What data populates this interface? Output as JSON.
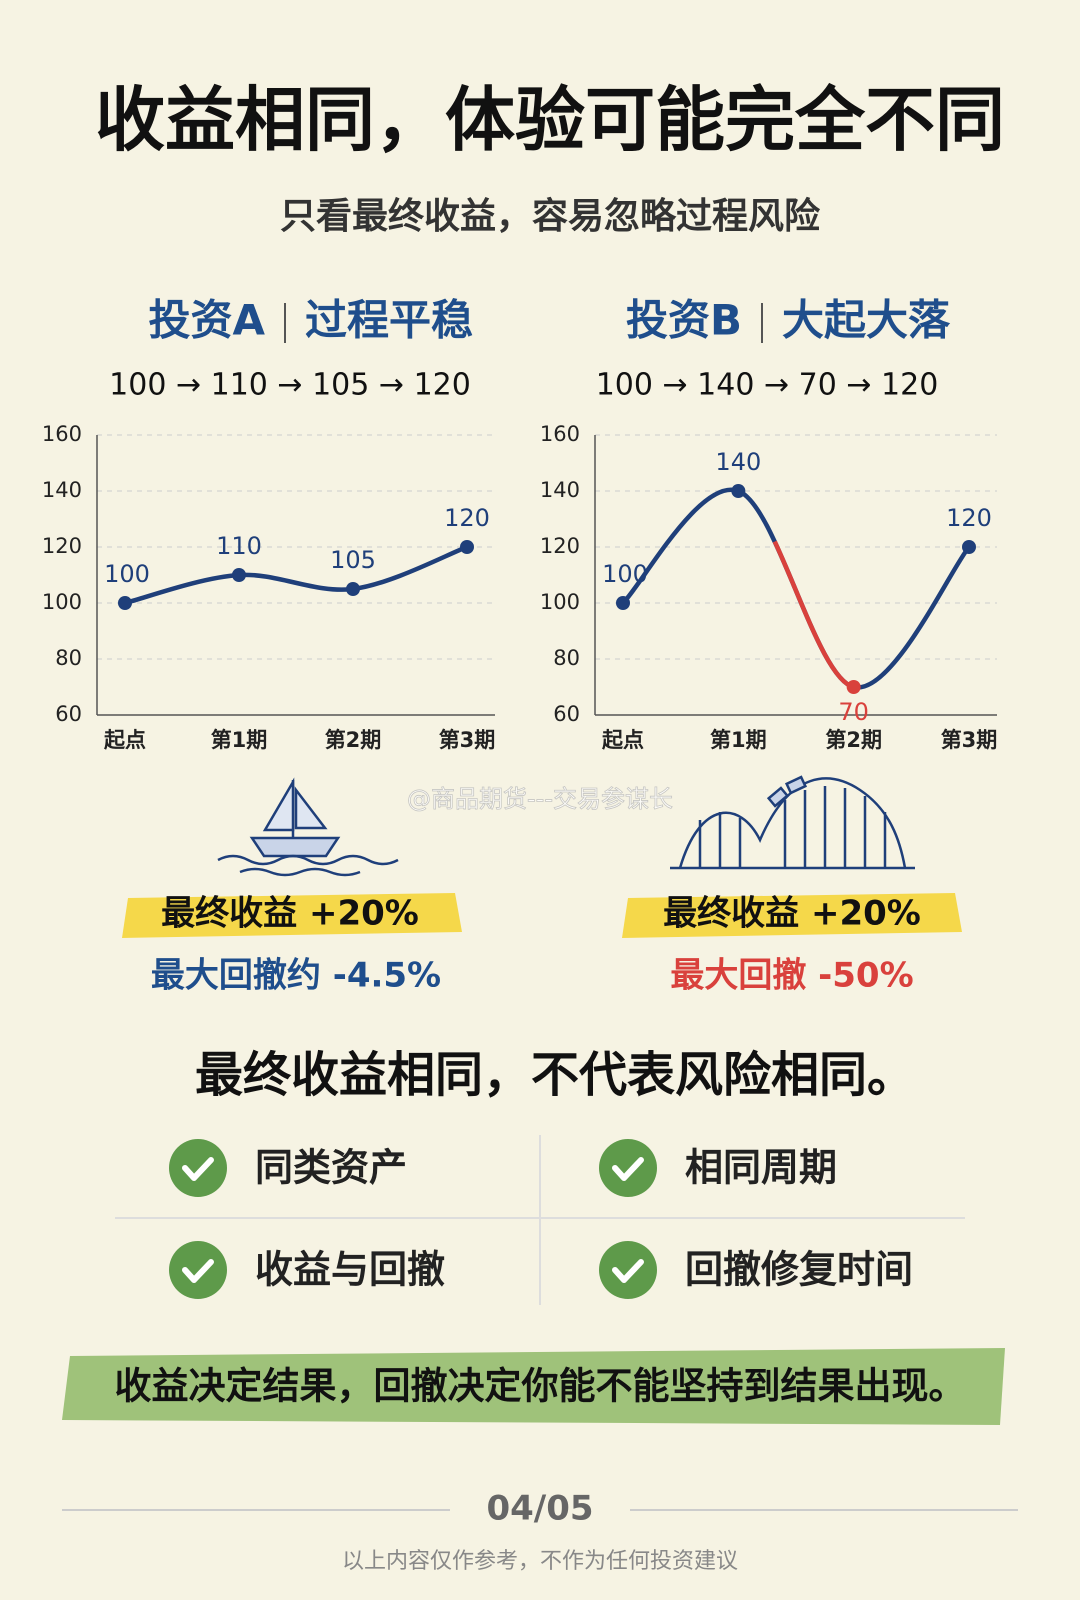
{
  "title": "收益相同，体验可能完全不同",
  "subtitle": "只看最终收益，容易忽略过程风险",
  "chart_data": [
    {
      "type": "line",
      "title": "投资A",
      "tagline": "过程平稳",
      "path_text": "100 → 110 → 105 → 120",
      "categories": [
        "起点",
        "第1期",
        "第2期",
        "第3期"
      ],
      "series": [
        {
          "color": "#1f3f7a",
          "values": [
            100,
            110,
            105,
            120
          ]
        }
      ],
      "ylim": [
        60,
        160
      ],
      "yticks": [
        60,
        80,
        100,
        120,
        140,
        160
      ],
      "grid": true
    },
    {
      "type": "line",
      "title": "投资B",
      "tagline": "大起大落",
      "path_text": "100 → 140 → 70 → 120",
      "categories": [
        "起点",
        "第1期",
        "第2期",
        "第3期"
      ],
      "series": [
        {
          "color": "#1f3f7a",
          "values": [
            100,
            140,
            70,
            120
          ]
        }
      ],
      "drawdown_color": "#d9413c",
      "ylim": [
        60,
        160
      ],
      "yticks": [
        60,
        80,
        100,
        120,
        140,
        160
      ],
      "grid": true
    }
  ],
  "cards": [
    {
      "return": "最终收益 +20%",
      "drawdown": "最大回撤约 -4.5%"
    },
    {
      "return": "最终收益 +20%",
      "drawdown": "最大回撤 -50%"
    }
  ],
  "watermark": "@商品期货---交易参谋长",
  "conclusion": "最终收益相同，不代表风险相同。",
  "checks": [
    "同类资产",
    "相同周期",
    "收益与回撤",
    "回撤修复时间"
  ],
  "banner": "收益决定结果，回撤决定你能不能坚持到结果出现。",
  "page": "04/05",
  "footer": "以上内容仅作参考，不作为任何投资建议"
}
